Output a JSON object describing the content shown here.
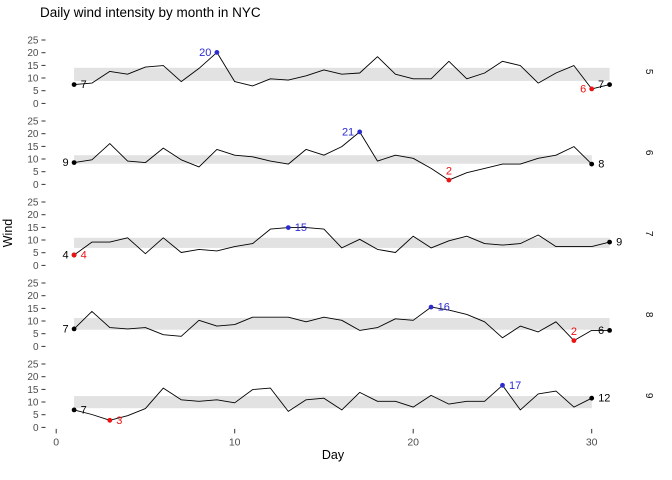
{
  "title": "Daily wind intensity by month in NYC",
  "colors": {
    "line": "#000000",
    "band": "#e2e2e2",
    "endpoint": "#000000",
    "max": "#2b2bd0",
    "min": "#ee1111",
    "axis_text": "#4d4d4d",
    "tick_mark": "#333333",
    "strip_text": "#111111"
  },
  "chart_data": {
    "type": "line",
    "title": "Daily wind intensity by month in NYC",
    "xlabel": "Day",
    "ylabel": "Wind",
    "xlim": [
      0,
      31
    ],
    "ylim": [
      0,
      25
    ],
    "grid": false,
    "x_ticks": [
      {
        "v": 0,
        "label": "0"
      },
      {
        "v": 10,
        "label": "10"
      },
      {
        "v": 20,
        "label": "20"
      },
      {
        "v": 30,
        "label": "30"
      }
    ],
    "y_ticks": [
      {
        "v": 25,
        "label": "25"
      },
      {
        "v": 20,
        "label": "20"
      },
      {
        "v": 15,
        "label": "15"
      },
      {
        "v": 10,
        "label": "10"
      },
      {
        "v": 5,
        "label": "5"
      },
      {
        "v": 0,
        "label": "0"
      }
    ],
    "facet_side": "right",
    "facets": [
      {
        "month": "5",
        "band": [
          8.9,
          14.05
        ],
        "values": [
          7.4,
          8.0,
          12.6,
          11.5,
          14.3,
          14.9,
          8.6,
          13.8,
          20.1,
          8.6,
          6.9,
          9.7,
          9.2,
          10.9,
          13.2,
          11.5,
          12.0,
          18.4,
          11.5,
          9.7,
          9.7,
          16.6,
          9.7,
          12.0,
          16.6,
          14.9,
          8.0,
          12.0,
          14.9,
          5.7,
          7.4
        ],
        "annotations": {
          "start": {
            "day": 1,
            "value": 7.4,
            "label": "7",
            "side": "right"
          },
          "end": {
            "day": 31,
            "value": 7.4,
            "label": "7",
            "side": "left"
          },
          "max": {
            "day": 9,
            "value": 20.1,
            "label": "20",
            "side": "left"
          },
          "min": {
            "day": 30,
            "value": 5.7,
            "label": "6",
            "side": "left"
          }
        }
      },
      {
        "month": "6",
        "band": [
          8.15,
          11.5
        ],
        "values": [
          8.6,
          9.7,
          16.1,
          9.2,
          8.6,
          14.3,
          9.7,
          6.9,
          13.8,
          11.5,
          10.9,
          9.2,
          8.0,
          13.8,
          11.5,
          14.9,
          20.7,
          9.2,
          11.5,
          10.3,
          6.3,
          1.7,
          4.6,
          6.3,
          8.0,
          8.0,
          10.3,
          11.5,
          14.9,
          8.0
        ],
        "annotations": {
          "start": {
            "day": 1,
            "value": 8.6,
            "label": "9",
            "side": "left"
          },
          "end": {
            "day": 30,
            "value": 8.0,
            "label": "8",
            "side": "right"
          },
          "max": {
            "day": 17,
            "value": 20.7,
            "label": "21",
            "side": "left"
          },
          "min": {
            "day": 22,
            "value": 1.7,
            "label": "2",
            "side": "above"
          }
        }
      },
      {
        "month": "7",
        "band": [
          6.9,
          10.9
        ],
        "values": [
          4.1,
          9.2,
          9.2,
          10.9,
          4.6,
          10.9,
          5.1,
          6.3,
          5.7,
          7.4,
          8.6,
          14.3,
          14.9,
          14.9,
          14.3,
          6.9,
          10.3,
          6.3,
          5.1,
          11.5,
          6.9,
          9.7,
          11.5,
          8.6,
          8.0,
          8.6,
          12.0,
          7.4,
          7.4,
          7.4,
          9.2
        ],
        "annotations": {
          "start": {
            "day": 1,
            "value": 4.1,
            "label": "4",
            "side": "left"
          },
          "end": {
            "day": 31,
            "value": 9.2,
            "label": "9",
            "side": "right"
          },
          "max": {
            "day": 13,
            "value": 14.9,
            "label": "15",
            "side": "right"
          },
          "min": {
            "day": 1,
            "value": 4.1,
            "label": "4",
            "side": "right"
          }
        }
      },
      {
        "month": "8",
        "band": [
          6.6,
          11.2
        ],
        "values": [
          6.9,
          13.8,
          7.4,
          6.9,
          7.4,
          4.6,
          4.0,
          10.3,
          8.0,
          8.6,
          11.5,
          11.5,
          11.5,
          9.7,
          11.5,
          10.3,
          6.3,
          7.4,
          10.9,
          10.3,
          15.5,
          14.3,
          12.6,
          9.7,
          3.4,
          8.0,
          5.7,
          9.7,
          2.3,
          6.3,
          6.3
        ],
        "annotations": {
          "start": {
            "day": 1,
            "value": 6.9,
            "label": "7",
            "side": "left"
          },
          "end": {
            "day": 31,
            "value": 6.3,
            "label": "6",
            "side": "left"
          },
          "max": {
            "day": 21,
            "value": 15.5,
            "label": "16",
            "side": "right"
          },
          "min": {
            "day": 29,
            "value": 2.3,
            "label": "2",
            "side": "above"
          }
        }
      },
      {
        "month": "9",
        "band": [
          7.55,
          12.33
        ],
        "values": [
          6.9,
          5.1,
          2.8,
          4.6,
          7.4,
          15.5,
          10.9,
          10.3,
          10.9,
          9.7,
          14.9,
          15.5,
          6.3,
          10.9,
          11.5,
          6.9,
          13.8,
          10.3,
          10.3,
          8.0,
          12.6,
          9.2,
          10.3,
          10.3,
          16.6,
          6.9,
          13.2,
          14.3,
          8.0,
          11.5
        ],
        "annotations": {
          "start": {
            "day": 1,
            "value": 6.9,
            "label": "7",
            "side": "right"
          },
          "end": {
            "day": 30,
            "value": 11.5,
            "label": "12",
            "side": "right"
          },
          "max": {
            "day": 25,
            "value": 16.6,
            "label": "17",
            "side": "right"
          },
          "min": {
            "day": 3,
            "value": 2.8,
            "label": "3",
            "side": "right"
          }
        }
      }
    ]
  }
}
